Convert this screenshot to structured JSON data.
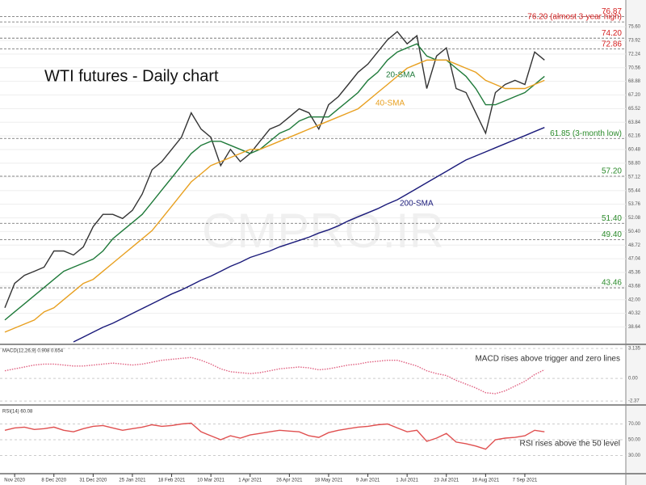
{
  "chart_data": [
    {
      "type": "line",
      "title": "WTI futures - Daily chart",
      "watermark": "CMPRO.IR",
      "ylim": [
        36.6,
        78.1
      ],
      "yticks": [
        38.64,
        40.32,
        {
          "value": 42,
          "label": "42.00"
        },
        43.68,
        45.36,
        47.04,
        48.72,
        {
          "value": 50.4,
          "label": "50.40"
        },
        52.08,
        53.76,
        55.44,
        57.12,
        {
          "value": 58.8,
          "label": "58.80"
        },
        60.48,
        62.16,
        63.84,
        65.52,
        {
          "value": 67.2,
          "label": "67.20"
        },
        68.88,
        70.56,
        72.24,
        73.92,
        {
          "value": 75.6,
          "label": "75.60"
        }
      ],
      "levels": [
        {
          "value": 76.87,
          "label": "76.87",
          "color": "#d42020"
        },
        {
          "value": 76.2,
          "label": "76.20 (almost 3-year high)",
          "color": "#d42020"
        },
        {
          "value": 74.2,
          "label": "74.20",
          "color": "#d42020"
        },
        {
          "value": 72.86,
          "label": "72.86",
          "color": "#d42020"
        },
        {
          "value": 61.85,
          "label": "61.85 (3-month low)",
          "color": "#2a8a2a"
        },
        {
          "value": 57.2,
          "label": "57.20",
          "color": "#2a8a2a"
        },
        {
          "value": 51.4,
          "label": "51.40",
          "color": "#2a8a2a"
        },
        {
          "value": 49.4,
          "label": "49.40",
          "color": "#2a8a2a"
        },
        {
          "value": 43.46,
          "label": "43.46",
          "color": "#2a8a2a"
        }
      ],
      "series": [
        {
          "color": "#333333",
          "values": [
            41,
            44,
            45,
            45.5,
            46,
            48,
            48,
            47.5,
            48.5,
            51,
            52.5,
            52.5,
            52,
            53,
            55,
            58,
            59,
            60.5,
            62,
            65,
            63,
            62,
            58.5,
            60.5,
            59,
            60,
            61.5,
            63,
            63.5,
            64.5,
            65.5,
            65,
            63,
            66,
            67,
            68.5,
            70,
            71,
            72.5,
            74,
            75,
            73.5,
            74.5,
            68,
            72,
            73,
            68,
            67.5,
            65,
            62.5,
            67.5,
            68.5,
            69,
            68.5,
            72.5,
            71.5
          ]
        },
        {
          "name": "20-SMA",
          "color": "#1f7a3a",
          "values": [
            39.5,
            40.5,
            41.5,
            42.5,
            43.5,
            44.5,
            45.5,
            46,
            46.5,
            47,
            48,
            49.5,
            50.5,
            51.5,
            52.5,
            54,
            55.5,
            57,
            58.5,
            60,
            61,
            61.5,
            61.5,
            61,
            60.5,
            60,
            60.5,
            61.5,
            62.5,
            63,
            64,
            64.5,
            64.5,
            64.5,
            65.5,
            66.5,
            67.5,
            69,
            70,
            71.5,
            72.5,
            73,
            73.5,
            72,
            71.5,
            71.5,
            70.5,
            69.5,
            68,
            66,
            66,
            66.5,
            67,
            67.5,
            68.5,
            69.5
          ]
        },
        {
          "name": "40-SMA",
          "color": "#e8a020",
          "values": [
            38,
            38.5,
            39,
            39.5,
            40.5,
            41,
            42,
            43,
            44,
            44.5,
            45.5,
            46.5,
            47.5,
            48.5,
            49.5,
            50.5,
            52,
            53.5,
            55,
            56.5,
            57.5,
            58.5,
            59,
            59.5,
            60,
            60.5,
            60.5,
            61,
            61.5,
            62,
            62.5,
            63,
            63.5,
            64,
            64.5,
            65,
            65.5,
            66.5,
            67.5,
            68.5,
            69.5,
            70.5,
            71,
            71.5,
            71.5,
            71.5,
            71,
            70.5,
            70,
            69,
            68.5,
            68,
            68,
            68,
            68.5,
            69
          ]
        },
        {
          "name": "200-SMA",
          "color": "#1a1a7a",
          "values": [
            null,
            null,
            null,
            null,
            null,
            null,
            null,
            36.8,
            37.4,
            38,
            38.6,
            39.1,
            39.7,
            40.3,
            40.9,
            41.5,
            42.1,
            42.7,
            43.2,
            43.8,
            44.4,
            44.9,
            45.5,
            46.1,
            46.6,
            47.2,
            47.6,
            48,
            48.5,
            48.9,
            49.3,
            49.7,
            50.2,
            50.6,
            51.1,
            51.7,
            52.2,
            52.7,
            53.2,
            53.8,
            54.3,
            55,
            55.7,
            56.4,
            57.1,
            57.8,
            58.5,
            59.2,
            59.7,
            60.2,
            60.7,
            61.2,
            61.7,
            62.2,
            62.7,
            63.2
          ]
        }
      ]
    },
    {
      "type": "line",
      "title": "MACD(12,26,9) 0.908 0.654",
      "annotation": "MACD rises above trigger and zero lines",
      "ylim": [
        -2.7,
        3.4
      ],
      "yticks": [
        -2.37,
        {
          "value": 0,
          "label": "0.00"
        },
        3.135
      ],
      "color": "#e06080",
      "values": [
        0.8,
        1,
        1.2,
        1.4,
        1.5,
        1.5,
        1.4,
        1.3,
        1.3,
        1.4,
        1.5,
        1.6,
        1.5,
        1.4,
        1.5,
        1.7,
        1.9,
        2,
        2.1,
        2.2,
        1.9,
        1.5,
        1,
        0.7,
        0.6,
        0.5,
        0.6,
        0.8,
        1,
        1.1,
        1.2,
        1.1,
        0.9,
        1,
        1.2,
        1.4,
        1.5,
        1.7,
        1.8,
        1.9,
        1.9,
        1.6,
        1.3,
        0.8,
        0.5,
        0.3,
        -0.2,
        -0.6,
        -1,
        -1.5,
        -1.6,
        -1.3,
        -0.8,
        -0.3,
        0.4,
        0.908
      ]
    },
    {
      "type": "line",
      "title": "RSI(14) 60.08",
      "annotation": "RSI rises above the 50 level",
      "ylim": [
        8,
        92
      ],
      "yticks": [
        {
          "value": 30,
          "label": "30.00"
        },
        {
          "value": 50,
          "label": "50.00"
        },
        {
          "value": 70,
          "label": "70.00"
        }
      ],
      "color": "#e05050",
      "categories": [
        null,
        "Nov 2020",
        null,
        null,
        null,
        "8 Dec 2020",
        null,
        null,
        null,
        "31 Dec 2020",
        null,
        null,
        null,
        "25 Jan 2021",
        null,
        null,
        null,
        "18 Feb 2021",
        null,
        null,
        null,
        "10 Mar 2021",
        null,
        null,
        null,
        "1 Apr 2021",
        null,
        null,
        null,
        "26 Apr 2021",
        null,
        null,
        null,
        "18 May 2021",
        null,
        null,
        null,
        "9 Jun 2021",
        null,
        null,
        null,
        "1 Jul 2021",
        null,
        null,
        null,
        "23 Jul 2021",
        null,
        null,
        null,
        "16 Aug 2021",
        null,
        null,
        null,
        "7 Sep 2021",
        null,
        null
      ],
      "values": [
        62,
        65,
        66,
        63,
        64,
        66,
        62,
        60,
        64,
        67,
        68,
        65,
        62,
        64,
        66,
        69,
        67,
        68,
        70,
        71,
        60,
        55,
        50,
        55,
        52,
        56,
        58,
        60,
        62,
        61,
        60,
        55,
        53,
        59,
        62,
        64,
        66,
        67,
        69,
        70,
        65,
        60,
        62,
        48,
        52,
        58,
        47,
        45,
        42,
        38,
        50,
        52,
        53,
        55,
        62,
        60.08
      ]
    }
  ]
}
